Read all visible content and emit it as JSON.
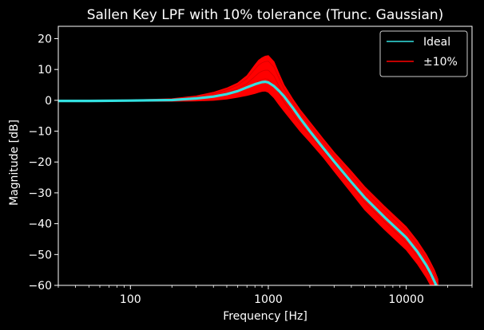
{
  "chart_data": {
    "type": "line",
    "title": "Sallen Key LPF with 10% tolerance (Trunc. Gaussian)",
    "xlabel": "Frequency [Hz]",
    "ylabel": "Magnitude [dB]",
    "xscale": "log",
    "xlim": [
      30,
      30000
    ],
    "ylim": [
      -60,
      24
    ],
    "xticks": [
      {
        "value": 100,
        "label": "100"
      },
      {
        "value": 1000,
        "label": "1000"
      },
      {
        "value": 10000,
        "label": "10000"
      }
    ],
    "yticks": [
      {
        "value": 20,
        "label": "20"
      },
      {
        "value": 10,
        "label": "10"
      },
      {
        "value": 0,
        "label": "0"
      },
      {
        "value": -10,
        "label": "−10"
      },
      {
        "value": -20,
        "label": "−20"
      },
      {
        "value": -30,
        "label": "−30"
      },
      {
        "value": -40,
        "label": "−40"
      },
      {
        "value": -50,
        "label": "−50"
      },
      {
        "value": -60,
        "label": "−60"
      }
    ],
    "legend_position": "top-right",
    "background": "#000000",
    "series": [
      {
        "name": "Ideal",
        "color": "#33e0e0",
        "x": [
          30,
          50,
          100,
          200,
          300,
          400,
          500,
          600,
          700,
          800,
          900,
          950,
          1000,
          1100,
          1200,
          1300,
          1500,
          1700,
          2000,
          2500,
          3000,
          4000,
          5000,
          7000,
          10000,
          12000,
          14000,
          15000,
          16000,
          16500
        ],
        "y": [
          -0.2,
          -0.2,
          -0.1,
          0.1,
          0.6,
          1.2,
          2.0,
          3.0,
          4.2,
          5.2,
          5.9,
          6.0,
          5.8,
          4.6,
          3.0,
          1.3,
          -2.4,
          -5.8,
          -10.0,
          -15.5,
          -19.8,
          -26.5,
          -31.5,
          -38.0,
          -44.5,
          -49.0,
          -53.5,
          -56.0,
          -58.7,
          -60.0
        ]
      },
      {
        "name": "±10%",
        "color": "#ff0000",
        "x": [
          30,
          50,
          100,
          200,
          300,
          400,
          500,
          600,
          700,
          800,
          850,
          900,
          950,
          1000,
          1100,
          1200,
          1300,
          1500,
          1700,
          2000,
          2500,
          3000,
          4000,
          5000,
          7000,
          10000,
          12000,
          14000,
          15000,
          16000,
          17000
        ],
        "y_max": [
          -0.1,
          -0.1,
          0.1,
          0.5,
          1.4,
          2.6,
          4.0,
          5.6,
          8.0,
          11.5,
          13.0,
          13.8,
          14.3,
          14.5,
          12.5,
          8.5,
          5.0,
          0.5,
          -3.0,
          -7.0,
          -12.5,
          -16.8,
          -23.0,
          -28.0,
          -34.5,
          -41.0,
          -45.5,
          -50.0,
          -52.5,
          -55.0,
          -58.0
        ],
        "y_min": [
          -0.3,
          -0.3,
          -0.3,
          -0.3,
          -0.2,
          0.0,
          0.4,
          1.0,
          1.6,
          2.2,
          2.6,
          2.9,
          3.0,
          2.6,
          0.8,
          -1.5,
          -3.5,
          -7.0,
          -10.0,
          -13.5,
          -18.5,
          -23.0,
          -30.0,
          -35.5,
          -42.0,
          -48.5,
          -53.0,
          -57.5,
          -60.0,
          -60.0,
          -60.0
        ]
      }
    ]
  }
}
